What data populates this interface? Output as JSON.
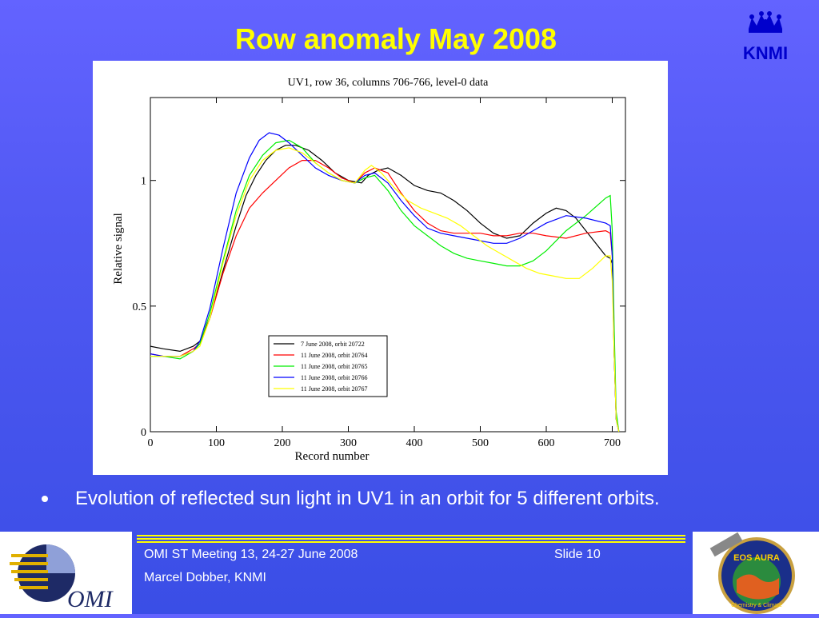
{
  "slide": {
    "title": "Row anomaly May 2008",
    "bullet": "Evolution of reflected sun light in UV1 in an orbit for 5 different orbits."
  },
  "logos": {
    "knmi": "KNMI",
    "omi": "OMI",
    "eos": "EOS AURA",
    "eos_sub": "Chemistry & Climate"
  },
  "footer": {
    "meeting": "OMI ST Meeting 13, 24-27 June 2008",
    "slide": "Slide 10",
    "author": "Marcel Dobber, KNMI"
  },
  "colors": {
    "title": "#ffff00",
    "background": "#4f58f2",
    "footer_lines": "#ffff00"
  },
  "chart_data": {
    "type": "line",
    "title": "UV1, row 36, columns 706-766, level-0 data",
    "xlabel": "Record number",
    "ylabel": "Relative signal",
    "xlim": [
      0,
      720
    ],
    "ylim": [
      0,
      1.33
    ],
    "xticks": [
      0,
      100,
      200,
      300,
      400,
      500,
      600,
      700
    ],
    "yticks": [
      0,
      0.5,
      1
    ],
    "grid": false,
    "legend_position": "bottom-center",
    "series": [
      {
        "name": "7 June 2008, orbit 20722",
        "color": "#000000",
        "x": [
          0,
          20,
          45,
          65,
          75,
          90,
          110,
          130,
          145,
          160,
          175,
          190,
          205,
          220,
          240,
          260,
          280,
          300,
          320,
          330,
          345,
          360,
          380,
          400,
          420,
          440,
          460,
          480,
          500,
          520,
          540,
          560,
          580,
          600,
          615,
          630,
          645,
          660,
          675,
          690,
          697,
          700,
          703,
          706,
          710
        ],
        "y": [
          0.34,
          0.33,
          0.32,
          0.34,
          0.36,
          0.45,
          0.64,
          0.82,
          0.94,
          1.02,
          1.08,
          1.12,
          1.14,
          1.14,
          1.12,
          1.08,
          1.03,
          1.0,
          0.99,
          1.02,
          1.04,
          1.05,
          1.02,
          0.98,
          0.96,
          0.95,
          0.92,
          0.88,
          0.83,
          0.79,
          0.77,
          0.78,
          0.83,
          0.87,
          0.89,
          0.88,
          0.85,
          0.8,
          0.75,
          0.7,
          0.69,
          0.67,
          0.3,
          0.05,
          0.0
        ]
      },
      {
        "name": "11 June 2008, orbit 20764",
        "color": "#ff0000",
        "x": [
          0,
          20,
          45,
          65,
          75,
          90,
          110,
          130,
          150,
          170,
          190,
          210,
          230,
          250,
          270,
          290,
          310,
          325,
          340,
          360,
          380,
          400,
          420,
          440,
          460,
          480,
          500,
          520,
          540,
          560,
          580,
          600,
          630,
          660,
          690,
          697,
          700,
          703,
          706,
          710
        ],
        "y": [
          0.31,
          0.3,
          0.3,
          0.33,
          0.35,
          0.45,
          0.63,
          0.78,
          0.89,
          0.95,
          1.0,
          1.05,
          1.08,
          1.08,
          1.05,
          1.01,
          0.99,
          1.03,
          1.05,
          1.03,
          0.95,
          0.88,
          0.83,
          0.8,
          0.79,
          0.79,
          0.79,
          0.78,
          0.78,
          0.79,
          0.79,
          0.78,
          0.77,
          0.79,
          0.8,
          0.79,
          0.7,
          0.3,
          0.05,
          0.0
        ]
      },
      {
        "name": "11 June 2008, orbit 20765",
        "color": "#00ee00",
        "x": [
          0,
          20,
          45,
          65,
          75,
          90,
          110,
          130,
          150,
          170,
          190,
          210,
          230,
          250,
          270,
          290,
          310,
          325,
          340,
          360,
          380,
          400,
          420,
          440,
          460,
          480,
          500,
          520,
          540,
          560,
          580,
          600,
          630,
          660,
          690,
          697,
          700,
          703,
          706,
          710
        ],
        "y": [
          0.3,
          0.3,
          0.29,
          0.32,
          0.35,
          0.47,
          0.68,
          0.88,
          1.02,
          1.1,
          1.15,
          1.16,
          1.13,
          1.07,
          1.03,
          1.0,
          0.99,
          1.01,
          1.02,
          0.96,
          0.88,
          0.82,
          0.78,
          0.74,
          0.71,
          0.69,
          0.68,
          0.67,
          0.66,
          0.66,
          0.68,
          0.72,
          0.8,
          0.86,
          0.93,
          0.94,
          0.8,
          0.4,
          0.08,
          0.0
        ]
      },
      {
        "name": "11 June 2008, orbit 20766",
        "color": "#0000ff",
        "x": [
          0,
          20,
          45,
          65,
          75,
          90,
          110,
          130,
          150,
          165,
          180,
          195,
          210,
          230,
          250,
          270,
          290,
          310,
          325,
          340,
          360,
          380,
          400,
          420,
          440,
          460,
          480,
          500,
          520,
          540,
          560,
          580,
          600,
          630,
          660,
          690,
          697,
          700,
          703,
          706,
          710
        ],
        "y": [
          0.31,
          0.3,
          0.3,
          0.32,
          0.36,
          0.49,
          0.73,
          0.95,
          1.09,
          1.16,
          1.19,
          1.18,
          1.15,
          1.1,
          1.05,
          1.02,
          1.0,
          0.99,
          1.02,
          1.03,
          0.99,
          0.92,
          0.86,
          0.81,
          0.79,
          0.78,
          0.77,
          0.76,
          0.75,
          0.75,
          0.77,
          0.8,
          0.83,
          0.86,
          0.85,
          0.83,
          0.82,
          0.7,
          0.3,
          0.05,
          0.0
        ]
      },
      {
        "name": "11 June 2008, orbit 20767",
        "color": "#ffff00",
        "x": [
          0,
          20,
          45,
          65,
          75,
          90,
          110,
          130,
          150,
          170,
          190,
          210,
          230,
          250,
          270,
          290,
          310,
          325,
          335,
          350,
          370,
          390,
          410,
          430,
          450,
          470,
          490,
          510,
          530,
          550,
          570,
          590,
          610,
          630,
          650,
          670,
          690,
          697,
          700,
          703,
          706,
          710
        ],
        "y": [
          0.3,
          0.3,
          0.3,
          0.32,
          0.34,
          0.45,
          0.67,
          0.86,
          1.0,
          1.08,
          1.12,
          1.13,
          1.11,
          1.07,
          1.03,
          1.0,
          0.99,
          1.04,
          1.06,
          1.03,
          0.97,
          0.92,
          0.89,
          0.87,
          0.85,
          0.82,
          0.78,
          0.74,
          0.71,
          0.68,
          0.65,
          0.63,
          0.62,
          0.61,
          0.61,
          0.65,
          0.7,
          0.7,
          0.6,
          0.3,
          0.05,
          0.0
        ]
      }
    ]
  }
}
